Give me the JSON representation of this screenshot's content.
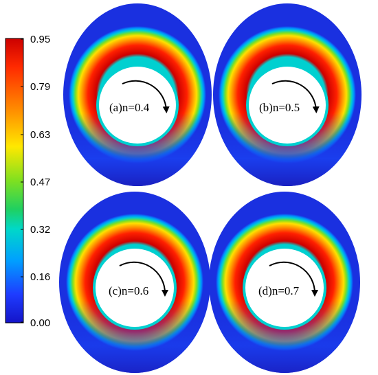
{
  "colorbar": {
    "ticks": [
      "0.95",
      "0.79",
      "0.63",
      "0.47",
      "0.32",
      "0.16",
      "0.00"
    ],
    "min": 0.0,
    "max": 0.95,
    "colors": [
      "#cc0000",
      "#ff2a00",
      "#ff8c00",
      "#ffe800",
      "#b8f000",
      "#3cd84a",
      "#00d8c8",
      "#00a0ff",
      "#1e3cff",
      "#1414c8"
    ]
  },
  "panels": [
    {
      "label": "(a)n=0.4",
      "rotation": "clockwise"
    },
    {
      "label": "(b)n=0.5",
      "rotation": "clockwise"
    },
    {
      "label": "(c)n=0.6",
      "rotation": "clockwise"
    },
    {
      "label": "(d)n=0.7",
      "rotation": "clockwise"
    }
  ]
}
